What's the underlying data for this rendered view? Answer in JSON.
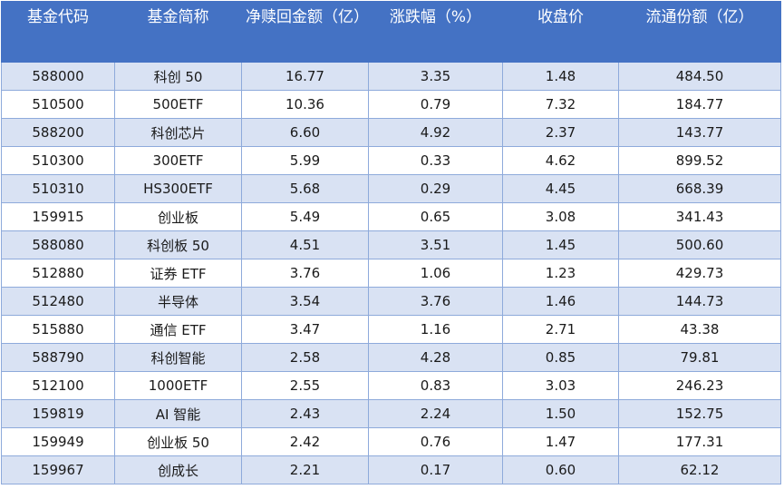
{
  "headers": [
    "基金代码",
    "基金简称",
    "净赎回金额（亿）",
    "涨跌幅（%）",
    "收盘价",
    "流通份额（亿）"
  ],
  "rows": [
    [
      "588000",
      "科创 50",
      "16.77",
      "3.35",
      "1.48",
      "484.50"
    ],
    [
      "510500",
      "500ETF",
      "10.36",
      "0.79",
      "7.32",
      "184.77"
    ],
    [
      "588200",
      "科创芯片",
      "6.60",
      "4.92",
      "2.37",
      "143.77"
    ],
    [
      "510300",
      "300ETF",
      "5.99",
      "0.33",
      "4.62",
      "899.52"
    ],
    [
      "510310",
      "HS300ETF",
      "5.68",
      "0.29",
      "4.45",
      "668.39"
    ],
    [
      "159915",
      "创业板",
      "5.49",
      "0.65",
      "3.08",
      "341.43"
    ],
    [
      "588080",
      "科创板 50",
      "4.51",
      "3.51",
      "1.45",
      "500.60"
    ],
    [
      "512880",
      "证券 ETF",
      "3.76",
      "1.06",
      "1.23",
      "429.73"
    ],
    [
      "512480",
      "半导体",
      "3.54",
      "3.76",
      "1.46",
      "144.73"
    ],
    [
      "515880",
      "通信 ETF",
      "3.47",
      "1.16",
      "2.71",
      "43.38"
    ],
    [
      "588790",
      "科创智能",
      "2.58",
      "4.28",
      "0.85",
      "79.81"
    ],
    [
      "512100",
      "1000ETF",
      "2.55",
      "0.83",
      "3.03",
      "246.23"
    ],
    [
      "159819",
      "AI 智能",
      "2.43",
      "2.24",
      "1.50",
      "152.75"
    ],
    [
      "159949",
      "创业板 50",
      "2.42",
      "0.76",
      "1.47",
      "177.31"
    ],
    [
      "159967",
      "创成长",
      "2.21",
      "0.17",
      "0.60",
      "62.12"
    ]
  ],
  "colors": {
    "header_bg": "#4472c4",
    "header_text": "#ffffff",
    "band_row": "#d9e2f3",
    "plain_row": "#ffffff",
    "grid": "#8eaadb"
  }
}
